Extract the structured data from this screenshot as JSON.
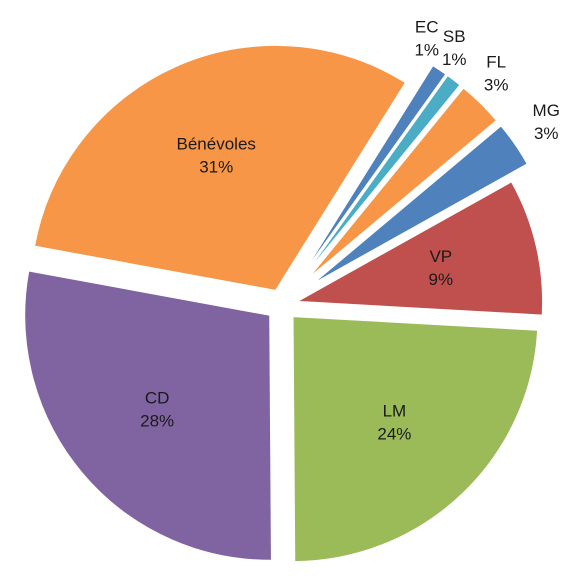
{
  "chart_data": {
    "type": "pie",
    "categories": [
      "EC",
      "SB",
      "FL",
      "MG",
      "VP",
      "LM",
      "CD",
      "Bénévoles"
    ],
    "values": [
      1,
      1,
      3,
      3,
      9,
      24,
      28,
      31
    ],
    "value_labels": [
      "1%",
      "1%",
      "3%",
      "3%",
      "9%",
      "24%",
      "28%",
      "31%"
    ],
    "colors": [
      "#4f81bd",
      "#4bacc6",
      "#f79646",
      "#4f81bd",
      "#c0504d",
      "#9bbb59",
      "#8064a2",
      "#f79646"
    ]
  }
}
